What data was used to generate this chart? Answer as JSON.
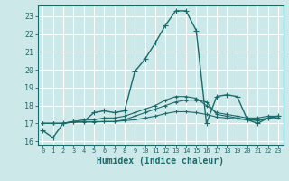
{
  "background_color": "#cce8e8",
  "grid_color": "#ffffff",
  "line_color": "#1a6b6b",
  "xlabel": "Humidex (Indice chaleur)",
  "xlim": [
    -0.5,
    23.5
  ],
  "ylim": [
    15.8,
    23.6
  ],
  "yticks": [
    16,
    17,
    18,
    19,
    20,
    21,
    22,
    23
  ],
  "xticks": [
    0,
    1,
    2,
    3,
    4,
    5,
    6,
    7,
    8,
    9,
    10,
    11,
    12,
    13,
    14,
    15,
    16,
    17,
    18,
    19,
    20,
    21,
    22,
    23
  ],
  "lines": [
    {
      "x": [
        0,
        1,
        2,
        3,
        4,
        5,
        6,
        7,
        8,
        9,
        10,
        11,
        12,
        13,
        14,
        15,
        16,
        17,
        18,
        19,
        20,
        21,
        22,
        23
      ],
      "y": [
        16.6,
        16.2,
        17.0,
        17.1,
        17.1,
        17.6,
        17.7,
        17.6,
        17.7,
        19.9,
        20.6,
        21.5,
        22.5,
        23.3,
        23.3,
        22.2,
        17.0,
        18.5,
        18.6,
        18.5,
        17.2,
        17.0,
        17.3,
        17.4
      ],
      "marker": "+",
      "markersize": 4,
      "linewidth": 1.0
    },
    {
      "x": [
        0,
        1,
        2,
        3,
        4,
        5,
        6,
        7,
        8,
        9,
        10,
        11,
        12,
        13,
        14,
        15,
        16,
        17,
        18,
        19,
        20,
        21,
        22,
        23
      ],
      "y": [
        17.0,
        17.0,
        17.0,
        17.1,
        17.1,
        17.1,
        17.1,
        17.1,
        17.2,
        17.4,
        17.6,
        17.8,
        18.0,
        18.2,
        18.3,
        18.3,
        18.2,
        17.5,
        17.4,
        17.3,
        17.2,
        17.2,
        17.3,
        17.4
      ],
      "marker": "+",
      "markersize": 3,
      "linewidth": 0.8
    },
    {
      "x": [
        0,
        1,
        2,
        3,
        4,
        5,
        6,
        7,
        8,
        9,
        10,
        11,
        12,
        13,
        14,
        15,
        16,
        17,
        18,
        19,
        20,
        21,
        22,
        23
      ],
      "y": [
        17.0,
        17.0,
        17.0,
        17.1,
        17.2,
        17.2,
        17.3,
        17.3,
        17.4,
        17.6,
        17.8,
        18.0,
        18.3,
        18.5,
        18.5,
        18.4,
        18.0,
        17.6,
        17.5,
        17.4,
        17.3,
        17.3,
        17.4,
        17.4
      ],
      "marker": "+",
      "markersize": 3,
      "linewidth": 0.8
    },
    {
      "x": [
        0,
        1,
        2,
        3,
        4,
        5,
        6,
        7,
        8,
        9,
        10,
        11,
        12,
        13,
        14,
        15,
        16,
        17,
        18,
        19,
        20,
        21,
        22,
        23
      ],
      "y": [
        17.0,
        17.0,
        17.0,
        17.05,
        17.07,
        17.07,
        17.1,
        17.1,
        17.15,
        17.2,
        17.3,
        17.4,
        17.55,
        17.65,
        17.65,
        17.6,
        17.5,
        17.35,
        17.3,
        17.25,
        17.2,
        17.15,
        17.25,
        17.3
      ],
      "marker": "+",
      "markersize": 3,
      "linewidth": 0.8
    }
  ]
}
